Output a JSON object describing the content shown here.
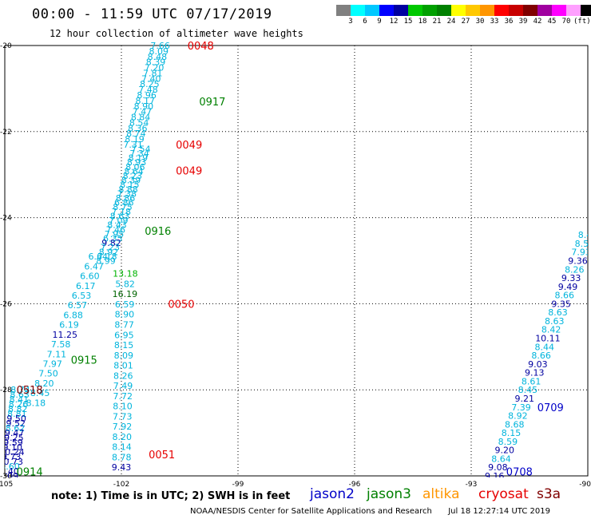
{
  "title": "00:00 - 11:59 UTC 07/17/2019",
  "subtitle": "12 hour collection of altimeter wave heights",
  "colorbar": {
    "colors": [
      "#808080",
      "#00ffff",
      "#00c8ff",
      "#0000ff",
      "#0000a0",
      "#00c800",
      "#00a000",
      "#008000",
      "#ffff00",
      "#ffc800",
      "#ff9600",
      "#ff0000",
      "#c80000",
      "#800000",
      "#a000a0",
      "#ff00ff",
      "#ffa0ff",
      "#000000"
    ],
    "labels": [
      "3",
      "6",
      "9",
      "12",
      "15",
      "18",
      "21",
      "24",
      "27",
      "30",
      "33",
      "36",
      "39",
      "42",
      "45",
      "70",
      "(ft)"
    ]
  },
  "axes": {
    "lon_range": [
      -105,
      -90
    ],
    "lat_range": [
      -30,
      -20
    ],
    "lon_ticks": [
      "-105",
      "-102",
      "-99",
      "-96",
      "-93",
      "-90"
    ],
    "lat_ticks": [
      "-20",
      "-22",
      "-24",
      "-26",
      "-28",
      "-30"
    ]
  },
  "swh_colors": {
    "lt9": "#00b4dc",
    "9to12": "#0000a0",
    "12to15": "#00b400",
    "15to18": "#006400"
  },
  "passes": [
    {
      "label": "0048",
      "lon": -100.3,
      "lat": -20.0,
      "color": "#e60000"
    },
    {
      "label": "0917",
      "lon": -100.0,
      "lat": -21.3,
      "color": "#008000"
    },
    {
      "label": "0049",
      "lon": -100.6,
      "lat": -22.3,
      "color": "#e60000"
    },
    {
      "label": "0049",
      "lon": -100.6,
      "lat": -22.9,
      "color": "#e60000"
    },
    {
      "label": "0916",
      "lon": -101.4,
      "lat": -24.3,
      "color": "#008000"
    },
    {
      "label": "0050",
      "lon": -100.8,
      "lat": -26.0,
      "color": "#e60000"
    },
    {
      "label": "0915",
      "lon": -103.3,
      "lat": -27.3,
      "color": "#008000"
    },
    {
      "label": "0518",
      "lon": -104.7,
      "lat": -28.0,
      "color": "#800000"
    },
    {
      "label": "0051",
      "lon": -101.3,
      "lat": -29.5,
      "color": "#e60000"
    },
    {
      "label": "0914",
      "lon": -104.7,
      "lat": -29.9,
      "color": "#008000"
    },
    {
      "label": "0709",
      "lon": -91.3,
      "lat": -28.4,
      "color": "#0000c8"
    },
    {
      "label": "0708",
      "lon": -92.1,
      "lat": -29.9,
      "color": "#0000c8"
    }
  ],
  "tracks": [
    {
      "lon0": -101.0,
      "lat0": -20.0,
      "lon1": -101.7,
      "lat1": -22.3,
      "values": [
        "7.66",
        "8.09",
        "8.48",
        "8.39",
        "7.20",
        "7.81",
        "7.40",
        "8.25",
        "7.48",
        "8.96",
        "8.17",
        "8.90",
        "7.47",
        "8.84",
        "8.54",
        "8.36",
        "8.74",
        "8.19",
        "7.31"
      ]
    },
    {
      "lon0": -101.5,
      "lat0": -22.4,
      "lon1": -102.4,
      "lat1": -25.0,
      "values": [
        "7.54",
        "7.34",
        "8.19",
        "8.93",
        "8.06",
        "8.64",
        "8.23",
        "8.39",
        "8.15",
        "8.88",
        "7.38",
        "8.86",
        "6.86",
        "8.75",
        "7.18",
        "8.63",
        "7.09",
        "8.43",
        "7.46",
        "7.95",
        "6.35",
        "9.82",
        "7.23",
        "8.92",
        "7.18",
        "8.99"
      ]
    },
    {
      "lon0": -101.9,
      "lat0": -25.3,
      "lon1": -102.0,
      "lat1": -29.8,
      "values": [
        "13.18",
        "5.82",
        "16.19",
        "6.59",
        "8.90",
        "8.77",
        "6.95",
        "8.15",
        "8.09",
        "8.01",
        "8.26",
        "7.49",
        "7.72",
        "8.10",
        "7.73",
        "7.92",
        "8.20",
        "8.14",
        "8.78",
        "9.43"
      ]
    },
    {
      "lon0": -102.6,
      "lat0": -24.9,
      "lon1": -104.2,
      "lat1": -28.3,
      "values": [
        "6.64",
        "6.47",
        "6.60",
        "6.17",
        "6.53",
        "6.57",
        "6.88",
        "6.19",
        "11.25",
        "7.58",
        "7.11",
        "7.97",
        "7.50",
        "8.20",
        "8.45",
        "8.18"
      ]
    },
    {
      "lon0": -104.6,
      "lat0": -28.0,
      "lon1": -104.9,
      "lat1": -30.0,
      "values": [
        "8.74",
        "8.63",
        "8.41",
        "8.26",
        "8.82",
        "8.81",
        "9.50",
        "9.52",
        "8.62",
        "9.47",
        "9.25",
        "9.59",
        "9.10",
        "10.24",
        "9.73",
        "10.73",
        "8.60",
        "9.40",
        "9.09"
      ]
    },
    {
      "lon0": -90.0,
      "lat0": -24.4,
      "lon1": -92.4,
      "lat1": -30.0,
      "values": [
        "8.48",
        "8.50",
        "7.93",
        "9.36",
        "8.26",
        "9.33",
        "9.49",
        "8.66",
        "9.35",
        "8.63",
        "8.63",
        "8.42",
        "10.11",
        "8.44",
        "8.66",
        "9.03",
        "9.13",
        "8.61",
        "8.45",
        "9.21",
        "7.39",
        "8.92",
        "8.68",
        "8.15",
        "8.59",
        "9.20",
        "8.64",
        "9.08",
        "9.16"
      ]
    }
  ],
  "note": "note: 1) Time is in UTC; 2) SWH is in feet",
  "legend": [
    {
      "name": "jason2",
      "color": "#0000c8"
    },
    {
      "name": "jason3",
      "color": "#008000"
    },
    {
      "name": "altika",
      "color": "#ff9600"
    },
    {
      "name": "cryosat",
      "color": "#e60000"
    },
    {
      "name": "s3a",
      "color": "#800000"
    }
  ],
  "credit": "NOAA/NESDIS Center for Satellite Applications and Research",
  "timestamp": "Jul 18 12:27:14 UTC 2019"
}
